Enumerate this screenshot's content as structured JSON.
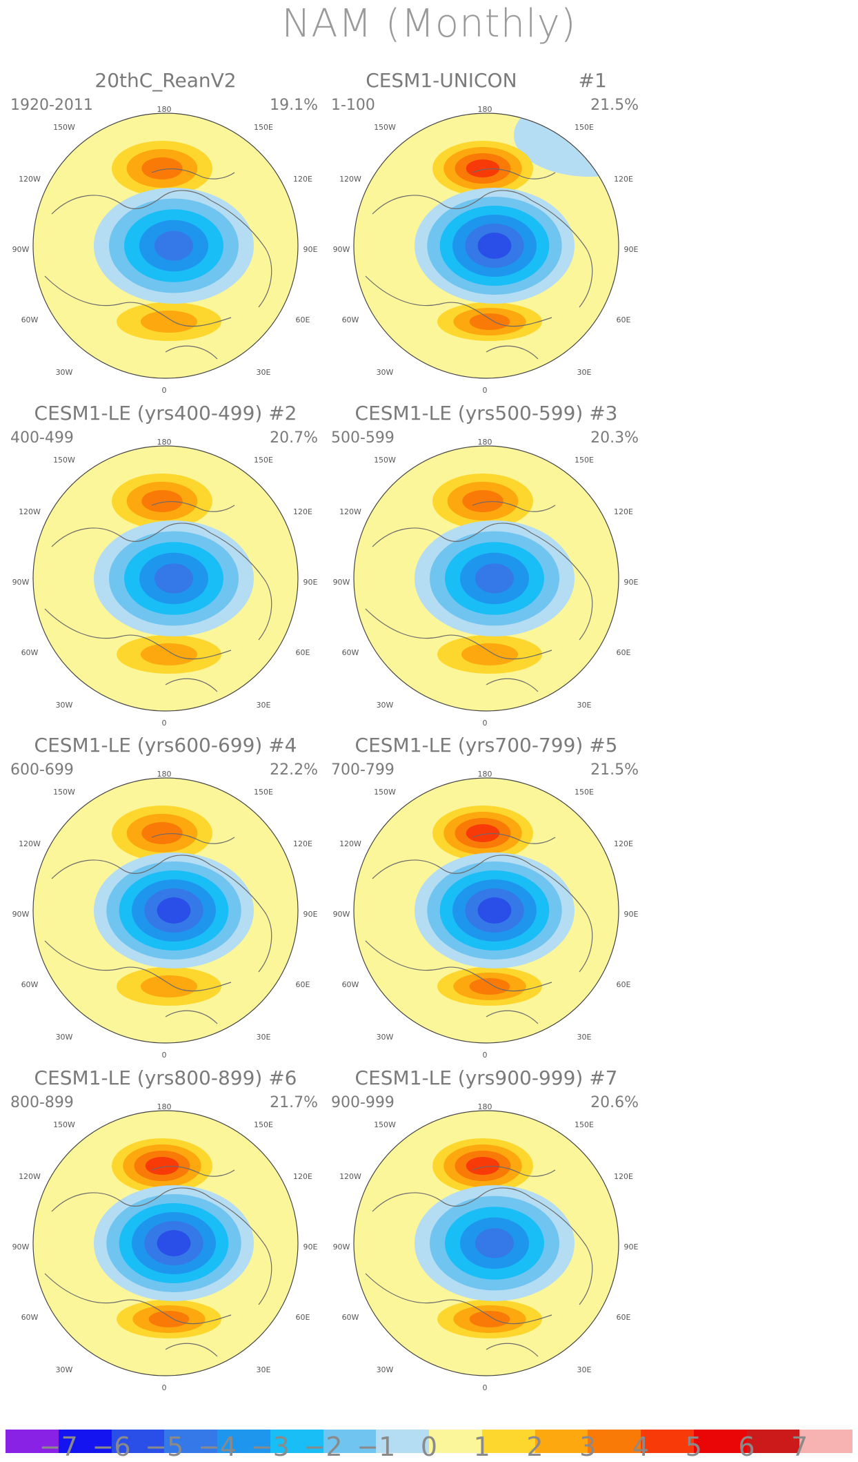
{
  "title": "NAM (Monthly)",
  "longitude_labels": [
    "180",
    "150W",
    "150E",
    "120W",
    "120E",
    "90W",
    "90E",
    "60W",
    "60E",
    "30W",
    "30E",
    "0"
  ],
  "panels": [
    {
      "title": "20thC_ReanV2",
      "years": "1920-2011",
      "percent": "19.1%",
      "pos_max": 3,
      "neg_min": -5
    },
    {
      "title": "CESM1-UNICON          #1",
      "years": "1-100",
      "percent": "21.5%",
      "pos_max": 4,
      "neg_min": -6
    },
    {
      "title": "CESM1-LE (yrs400-499) #2",
      "years": "400-499",
      "percent": "20.7%",
      "pos_max": 3,
      "neg_min": -5
    },
    {
      "title": "CESM1-LE (yrs500-599) #3",
      "years": "500-599",
      "percent": "20.3%",
      "pos_max": 3,
      "neg_min": -5
    },
    {
      "title": "CESM1-LE (yrs600-699) #4",
      "years": "600-699",
      "percent": "22.2%",
      "pos_max": 3,
      "neg_min": -6
    },
    {
      "title": "CESM1-LE (yrs700-799) #5",
      "years": "700-799",
      "percent": "21.5%",
      "pos_max": 4,
      "neg_min": -6
    },
    {
      "title": "CESM1-LE (yrs800-899) #6",
      "years": "800-899",
      "percent": "21.7%",
      "pos_max": 4,
      "neg_min": -6
    },
    {
      "title": "CESM1-LE (yrs900-999) #7",
      "years": "900-999",
      "percent": "20.6%",
      "pos_max": 4,
      "neg_min": -5
    }
  ],
  "colorbar": {
    "labels": [
      "-7",
      "-6",
      "-5",
      "-4",
      "-3",
      "-2",
      "-1",
      "0",
      "1",
      "2",
      "3",
      "4",
      "5",
      "6",
      "7"
    ],
    "colors": [
      "#8a22e6",
      "#1414f0",
      "#2a4ee8",
      "#3578e8",
      "#1f96ee",
      "#18bef5",
      "#70c4f0",
      "#b4dcf2",
      "#fbf69a",
      "#fdd72e",
      "#fca80e",
      "#fa7a08",
      "#f83a08",
      "#ea0606",
      "#cc1a1a",
      "#f7b2b2"
    ]
  }
}
